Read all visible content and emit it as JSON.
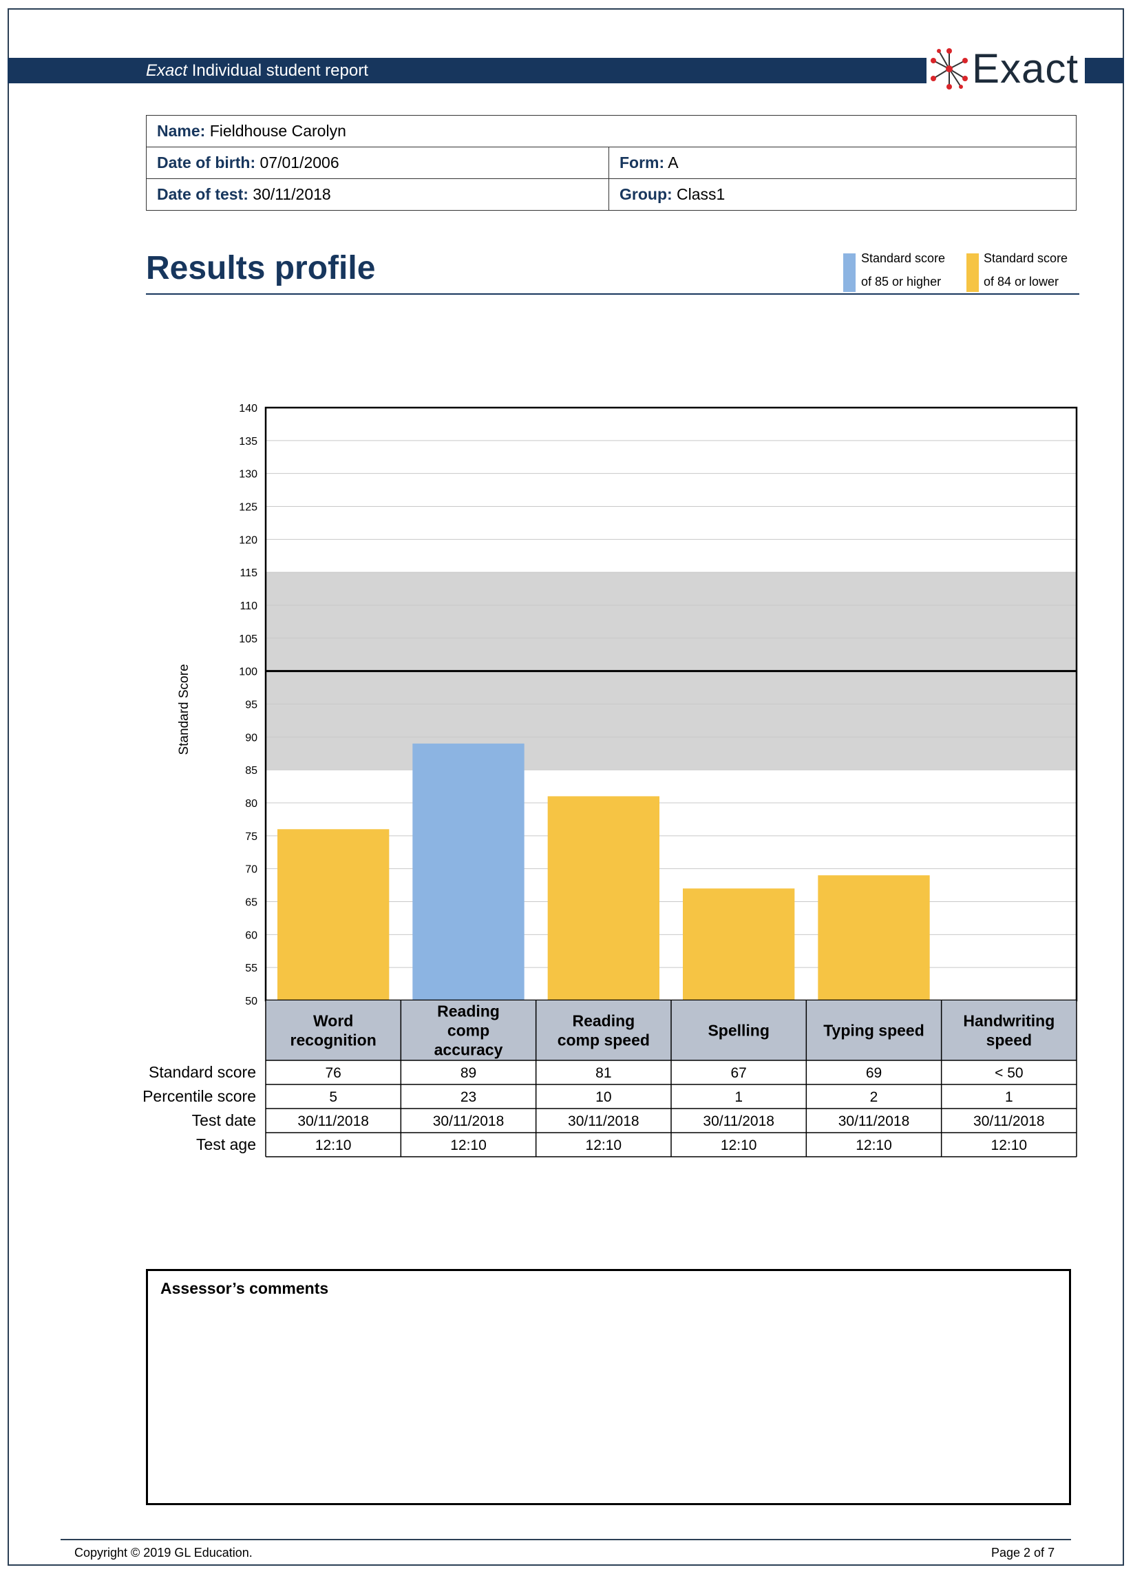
{
  "header": {
    "title_em": "Exact",
    "title_rest": " Individual student report",
    "logo_text": "Exact",
    "bar_color": "#17365d"
  },
  "student": {
    "name_label": "Name:",
    "name": "Fieldhouse Carolyn",
    "dob_label": "Date of birth:",
    "dob": "07/01/2006",
    "form_label": "Form:",
    "form": "A",
    "test_date_label": "Date of test:",
    "test_date": "30/11/2018",
    "group_label": "Group:",
    "group": "Class1"
  },
  "results": {
    "heading": "Results profile"
  },
  "legend": {
    "high_line1": "Standard score",
    "high_line2": "of 85 or higher",
    "high_color": "#8cb4e2",
    "low_line1": "Standard score",
    "low_line2": "of 84 or lower",
    "low_color": "#f6c444"
  },
  "chart_data": {
    "type": "bar",
    "ylabel": "Standard Score",
    "ylim": [
      50,
      140
    ],
    "ytick_step": 5,
    "average_band": [
      85,
      115
    ],
    "reference_line": 100,
    "band_color": "#d4d4d4",
    "grid": true,
    "categories": [
      [
        "Word",
        "recognition"
      ],
      [
        "Reading",
        "comp",
        "accuracy"
      ],
      [
        "Reading",
        "comp speed"
      ],
      [
        "Spelling"
      ],
      [
        "Typing speed"
      ],
      [
        "Handwriting",
        "speed"
      ]
    ],
    "values": [
      76,
      89,
      81,
      67,
      69,
      null
    ],
    "bar_colors": [
      "#f6c444",
      "#8cb4e2",
      "#f6c444",
      "#f6c444",
      "#f6c444",
      null
    ]
  },
  "score_table": {
    "header_bg": "#b9c1ce",
    "rows": [
      {
        "label": "Standard score",
        "values": [
          "76",
          "89",
          "81",
          "67",
          "69",
          "< 50"
        ]
      },
      {
        "label": "Percentile score",
        "values": [
          "5",
          "23",
          "10",
          "1",
          "2",
          "1"
        ]
      },
      {
        "label": "Test date",
        "values": [
          "30/11/2018",
          "30/11/2018",
          "30/11/2018",
          "30/11/2018",
          "30/11/2018",
          "30/11/2018"
        ]
      },
      {
        "label": "Test age",
        "values": [
          "12:10",
          "12:10",
          "12:10",
          "12:10",
          "12:10",
          "12:10"
        ]
      }
    ]
  },
  "comments": {
    "title": "Assessor’s comments"
  },
  "footer": {
    "copyright": "Copyright © 2019 GL Education.",
    "page": "Page 2 of 7"
  }
}
